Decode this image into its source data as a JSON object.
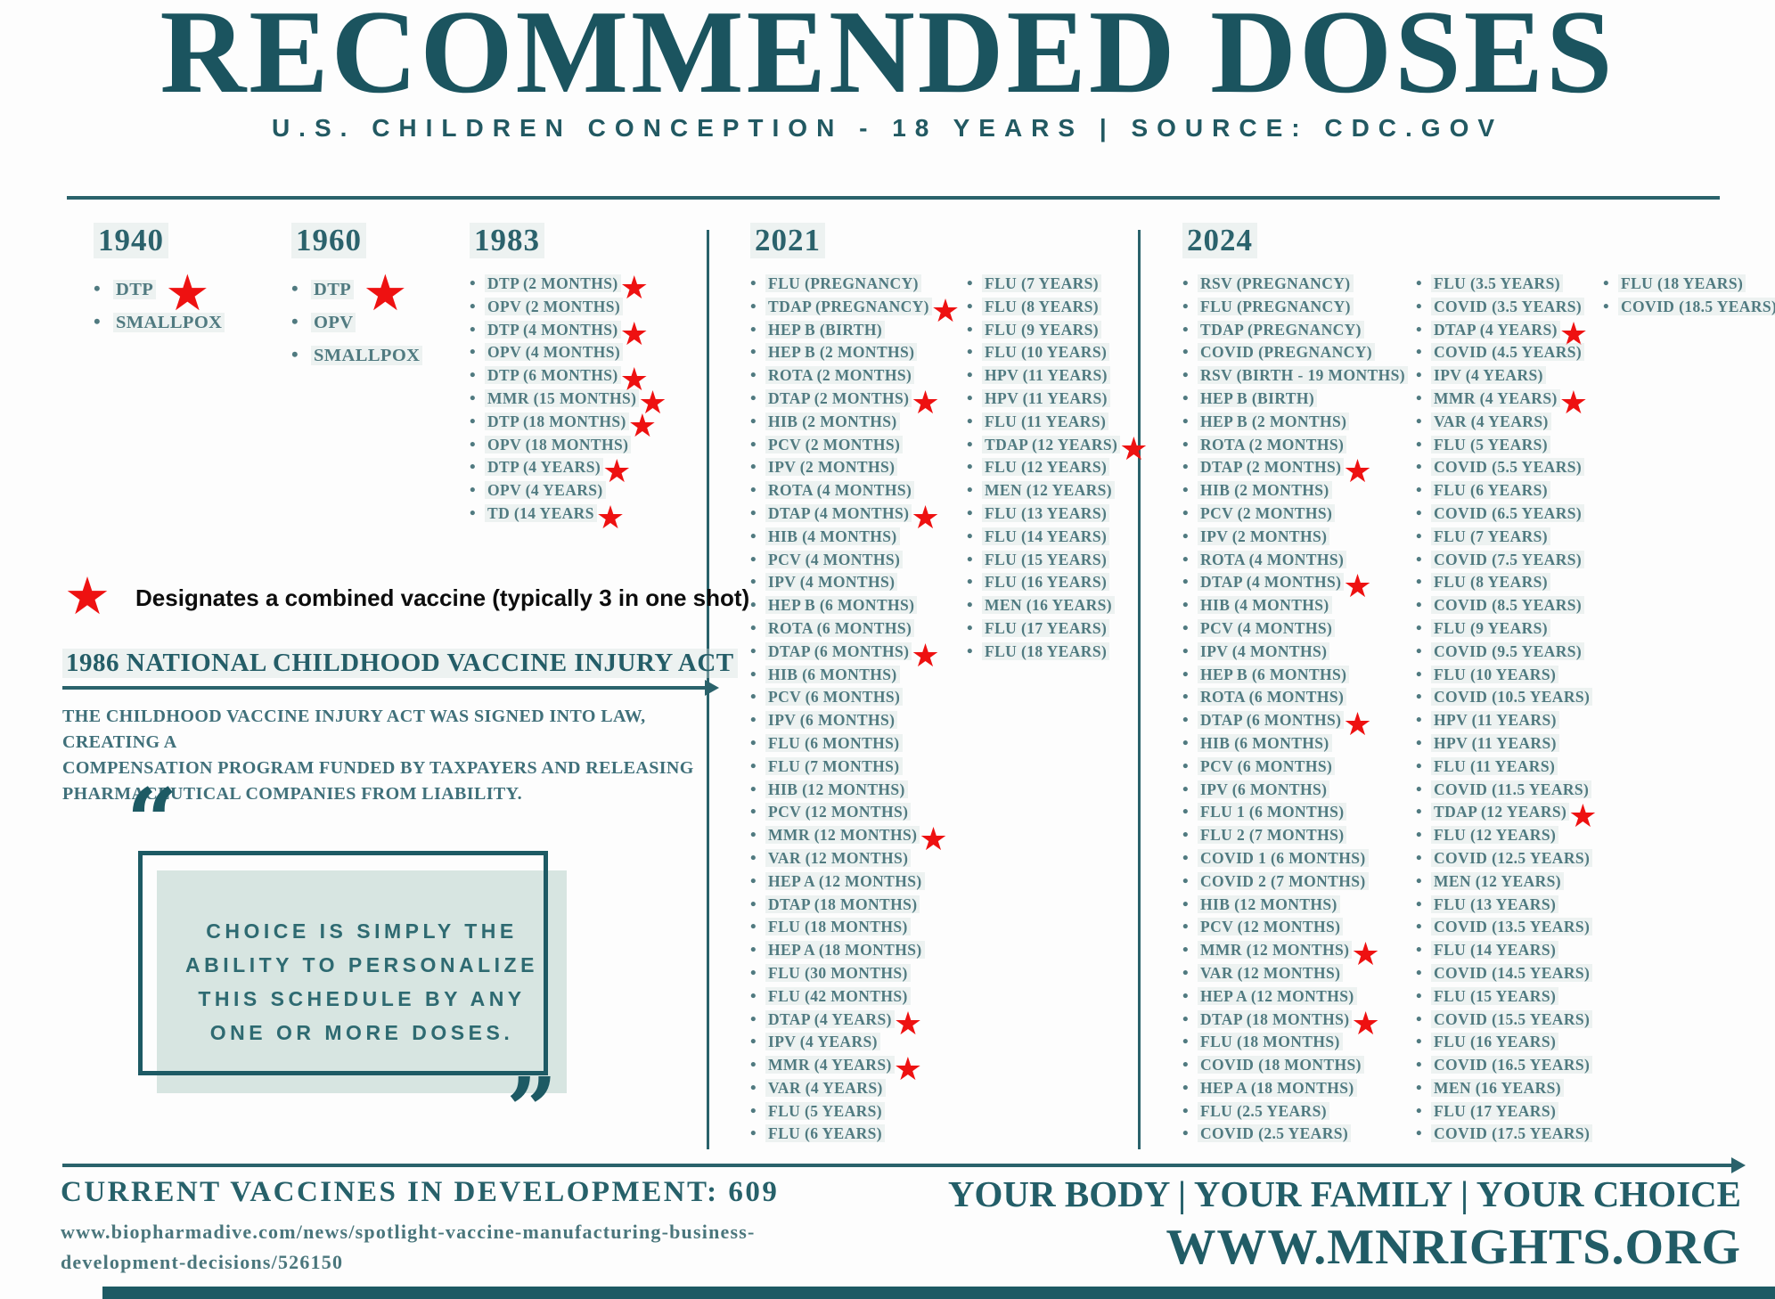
{
  "title": "RECOMMENDED DOSES",
  "subtitle": "U.S. CHILDREN CONCEPTION - 18 YEARS | SOURCE: CDC.GOV",
  "colors": {
    "teal_dark": "#1d5a64",
    "teal_heading": "#235e68",
    "teal_list_text": "#507a80",
    "star_red": "#ee1111",
    "mint_box": "#d7e5e1"
  },
  "legend": {
    "star_icon": "★",
    "text": "Designates a combined vaccine (typically 3 in one shot)"
  },
  "decades": [
    {
      "year": "1940",
      "columns": [
        [
          {
            "label": "DTP",
            "star": true
          },
          {
            "label": "SMALLPOX"
          }
        ]
      ]
    },
    {
      "year": "1960",
      "columns": [
        [
          {
            "label": "DTP",
            "star": true
          },
          {
            "label": "OPV"
          },
          {
            "label": "SMALLPOX"
          }
        ]
      ]
    },
    {
      "year": "1983",
      "columns": [
        [
          {
            "label": "DTP (2 MONTHS)",
            "star": true
          },
          {
            "label": "OPV (2 MONTHS)"
          },
          {
            "label": "DTP (4 MONTHS)",
            "star": true
          },
          {
            "label": "OPV (4 MONTHS)"
          },
          {
            "label": "DTP (6 MONTHS)",
            "star": true
          },
          {
            "label": "MMR (15 MONTHS)",
            "star": true
          },
          {
            "label": "DTP (18 MONTHS)",
            "star": true
          },
          {
            "label": "OPV (18 MONTHS)"
          },
          {
            "label": "DTP (4 YEARS)",
            "star": true
          },
          {
            "label": "OPV (4 YEARS)"
          },
          {
            "label": "TD (14 YEARS",
            "star": true
          }
        ]
      ]
    },
    {
      "year": "2021",
      "columns": [
        [
          {
            "label": "FLU (PREGNANCY)"
          },
          {
            "label": "TDAP (PREGNANCY)",
            "star": true
          },
          {
            "label": "HEP B (BIRTH)"
          },
          {
            "label": "HEP B (2 MONTHS)"
          },
          {
            "label": "ROTA (2 MONTHS)"
          },
          {
            "label": "DTAP (2 MONTHS)",
            "star": true
          },
          {
            "label": "HIB (2 MONTHS)"
          },
          {
            "label": "PCV (2 MONTHS)"
          },
          {
            "label": "IPV (2 MONTHS)"
          },
          {
            "label": "ROTA (4 MONTHS)"
          },
          {
            "label": "DTAP (4 MONTHS)",
            "star": true
          },
          {
            "label": "HIB (4 MONTHS)"
          },
          {
            "label": "PCV (4 MONTHS)"
          },
          {
            "label": "IPV (4 MONTHS)"
          },
          {
            "label": "HEP B (6 MONTHS)"
          },
          {
            "label": "ROTA (6 MONTHS)"
          },
          {
            "label": "DTAP (6 MONTHS)",
            "star": true
          },
          {
            "label": "HIB (6 MONTHS)"
          },
          {
            "label": "PCV (6 MONTHS)"
          },
          {
            "label": "IPV (6 MONTHS)"
          },
          {
            "label": "FLU (6 MONTHS)"
          },
          {
            "label": "FLU (7 MONTHS)"
          },
          {
            "label": "HIB (12 MONTHS)"
          },
          {
            "label": "PCV (12 MONTHS)"
          },
          {
            "label": "MMR (12 MONTHS)",
            "star": true
          },
          {
            "label": "VAR (12 MONTHS)"
          },
          {
            "label": "HEP A (12 MONTHS)"
          },
          {
            "label": "DTAP (18 MONTHS)"
          },
          {
            "label": "FLU (18 MONTHS)"
          },
          {
            "label": "HEP A (18 MONTHS)"
          },
          {
            "label": "FLU (30 MONTHS)"
          },
          {
            "label": "FLU (42 MONTHS)"
          },
          {
            "label": "DTAP (4 YEARS)",
            "star": true
          },
          {
            "label": "IPV (4 YEARS)"
          },
          {
            "label": "MMR (4 YEARS)",
            "star": true
          },
          {
            "label": "VAR (4 YEARS)"
          },
          {
            "label": "FLU (5 YEARS)"
          },
          {
            "label": "FLU (6 YEARS)"
          }
        ],
        [
          {
            "label": "FLU (7 YEARS)"
          },
          {
            "label": "FLU (8 YEARS)"
          },
          {
            "label": "FLU (9 YEARS)"
          },
          {
            "label": "FLU (10 YEARS)"
          },
          {
            "label": "HPV (11 YEARS)"
          },
          {
            "label": "HPV (11 YEARS)"
          },
          {
            "label": "FLU (11 YEARS)"
          },
          {
            "label": "TDAP (12 YEARS)",
            "star": true
          },
          {
            "label": "FLU (12 YEARS)"
          },
          {
            "label": "MEN (12 YEARS)"
          },
          {
            "label": "FLU (13 YEARS)"
          },
          {
            "label": "FLU (14 YEARS)"
          },
          {
            "label": "FLU (15 YEARS)"
          },
          {
            "label": "FLU (16 YEARS)"
          },
          {
            "label": "MEN (16 YEARS)"
          },
          {
            "label": "FLU (17 YEARS)"
          },
          {
            "label": "FLU (18 YEARS)"
          }
        ]
      ]
    },
    {
      "year": "2024",
      "columns": [
        [
          {
            "label": "RSV (PREGNANCY)"
          },
          {
            "label": "FLU (PREGNANCY)"
          },
          {
            "label": "TDAP (PREGNANCY)"
          },
          {
            "label": "COVID (PREGNANCY)"
          },
          {
            "label": "RSV (BIRTH - 19 MONTHS)"
          },
          {
            "label": "HEP B (BIRTH)"
          },
          {
            "label": "HEP B (2 MONTHS)"
          },
          {
            "label": "ROTA (2 MONTHS)"
          },
          {
            "label": "DTAP (2 MONTHS)",
            "star": true
          },
          {
            "label": "HIB (2 MONTHS)"
          },
          {
            "label": "PCV (2 MONTHS)"
          },
          {
            "label": "IPV (2 MONTHS)"
          },
          {
            "label": "ROTA (4 MONTHS)"
          },
          {
            "label": "DTAP (4 MONTHS)",
            "star": true
          },
          {
            "label": "HIB (4 MONTHS)"
          },
          {
            "label": "PCV (4 MONTHS)"
          },
          {
            "label": "IPV (4 MONTHS)"
          },
          {
            "label": "HEP B (6 MONTHS)"
          },
          {
            "label": "ROTA (6 MONTHS)"
          },
          {
            "label": "DTAP (6 MONTHS)",
            "star": true
          },
          {
            "label": "HIB (6 MONTHS)"
          },
          {
            "label": "PCV (6 MONTHS)"
          },
          {
            "label": "IPV (6 MONTHS)"
          },
          {
            "label": "FLU 1 (6 MONTHS)"
          },
          {
            "label": "FLU 2 (7 MONTHS)"
          },
          {
            "label": "COVID 1 (6 MONTHS)"
          },
          {
            "label": "COVID 2 (7 MONTHS)"
          },
          {
            "label": "HIB (12 MONTHS)"
          },
          {
            "label": "PCV (12 MONTHS)"
          },
          {
            "label": "MMR (12 MONTHS)",
            "star": true
          },
          {
            "label": "VAR (12 MONTHS)"
          },
          {
            "label": "HEP A (12 MONTHS)"
          },
          {
            "label": "DTAP (18 MONTHS)",
            "star": true
          },
          {
            "label": "FLU (18 MONTHS)"
          },
          {
            "label": "COVID (18 MONTHS)"
          },
          {
            "label": "HEP A (18 MONTHS)"
          },
          {
            "label": "FLU (2.5 YEARS)"
          },
          {
            "label": "COVID (2.5 YEARS)"
          }
        ],
        [
          {
            "label": "FLU (3.5 YEARS)"
          },
          {
            "label": "COVID (3.5 YEARS)"
          },
          {
            "label": "DTAP (4 YEARS)",
            "star": true
          },
          {
            "label": "COVID (4.5 YEARS)"
          },
          {
            "label": "IPV (4 YEARS)"
          },
          {
            "label": "MMR (4 YEARS)",
            "star": true
          },
          {
            "label": "VAR (4 YEARS)"
          },
          {
            "label": "FLU (5 YEARS)"
          },
          {
            "label": "COVID (5.5 YEARS)"
          },
          {
            "label": "FLU (6 YEARS)"
          },
          {
            "label": "COVID (6.5 YEARS)"
          },
          {
            "label": "FLU (7 YEARS)"
          },
          {
            "label": "COVID (7.5 YEARS)"
          },
          {
            "label": "FLU (8 YEARS)"
          },
          {
            "label": "COVID (8.5 YEARS)"
          },
          {
            "label": "FLU (9 YEARS)"
          },
          {
            "label": "COVID (9.5 YEARS)"
          },
          {
            "label": "FLU (10 YEARS)"
          },
          {
            "label": "COVID (10.5 YEARS)"
          },
          {
            "label": "HPV (11 YEARS)"
          },
          {
            "label": "HPV (11 YEARS)"
          },
          {
            "label": "FLU (11 YEARS)"
          },
          {
            "label": "COVID (11.5 YEARS)"
          },
          {
            "label": "TDAP (12 YEARS)",
            "star": true
          },
          {
            "label": "FLU (12 YEARS)"
          },
          {
            "label": "COVID (12.5 YEARS)"
          },
          {
            "label": "MEN (12 YEARS)"
          },
          {
            "label": "FLU (13 YEARS)"
          },
          {
            "label": "COVID (13.5 YEARS)"
          },
          {
            "label": "FLU (14 YEARS)"
          },
          {
            "label": "COVID (14.5 YEARS)"
          },
          {
            "label": "FLU (15 YEARS)"
          },
          {
            "label": "COVID (15.5 YEARS)"
          },
          {
            "label": "FLU (16 YEARS)"
          },
          {
            "label": "COVID (16.5 YEARS)"
          },
          {
            "label": "MEN (16 YEARS)"
          },
          {
            "label": "FLU (17 YEARS)"
          },
          {
            "label": "COVID (17.5 YEARS)"
          }
        ],
        [
          {
            "label": "FLU (18 YEARS)"
          },
          {
            "label": "COVID (18.5 YEARS)"
          }
        ]
      ]
    }
  ],
  "act": {
    "heading": "1986 NATIONAL CHILDHOOD VACCINE INJURY ACT",
    "body": "THE CHILDHOOD VACCINE INJURY ACT WAS SIGNED INTO LAW,  CREATING A\nCOMPENSATION PROGRAM FUNDED BY TAXPAYERS AND RELEASING\nPHARMACEUTICAL COMPANIES FROM LIABILITY."
  },
  "quote": {
    "open_mark": "“",
    "close_mark": "”",
    "text": "CHOICE IS SIMPLY THE\nABILITY TO PERSONALIZE\nTHIS SCHEDULE BY ANY\nONE OR MORE DOSES."
  },
  "footer": {
    "development": "CURRENT VACCINES IN DEVELOPMENT: 609",
    "source_url_line1": "www.biopharmadive.com/news/spotlight-vaccine-manufacturing-business-",
    "source_url_line2": "development-decisions/526150",
    "tagline": "YOUR BODY | YOUR FAMILY | YOUR CHOICE",
    "website": "WWW.MNRIGHTS.ORG"
  }
}
